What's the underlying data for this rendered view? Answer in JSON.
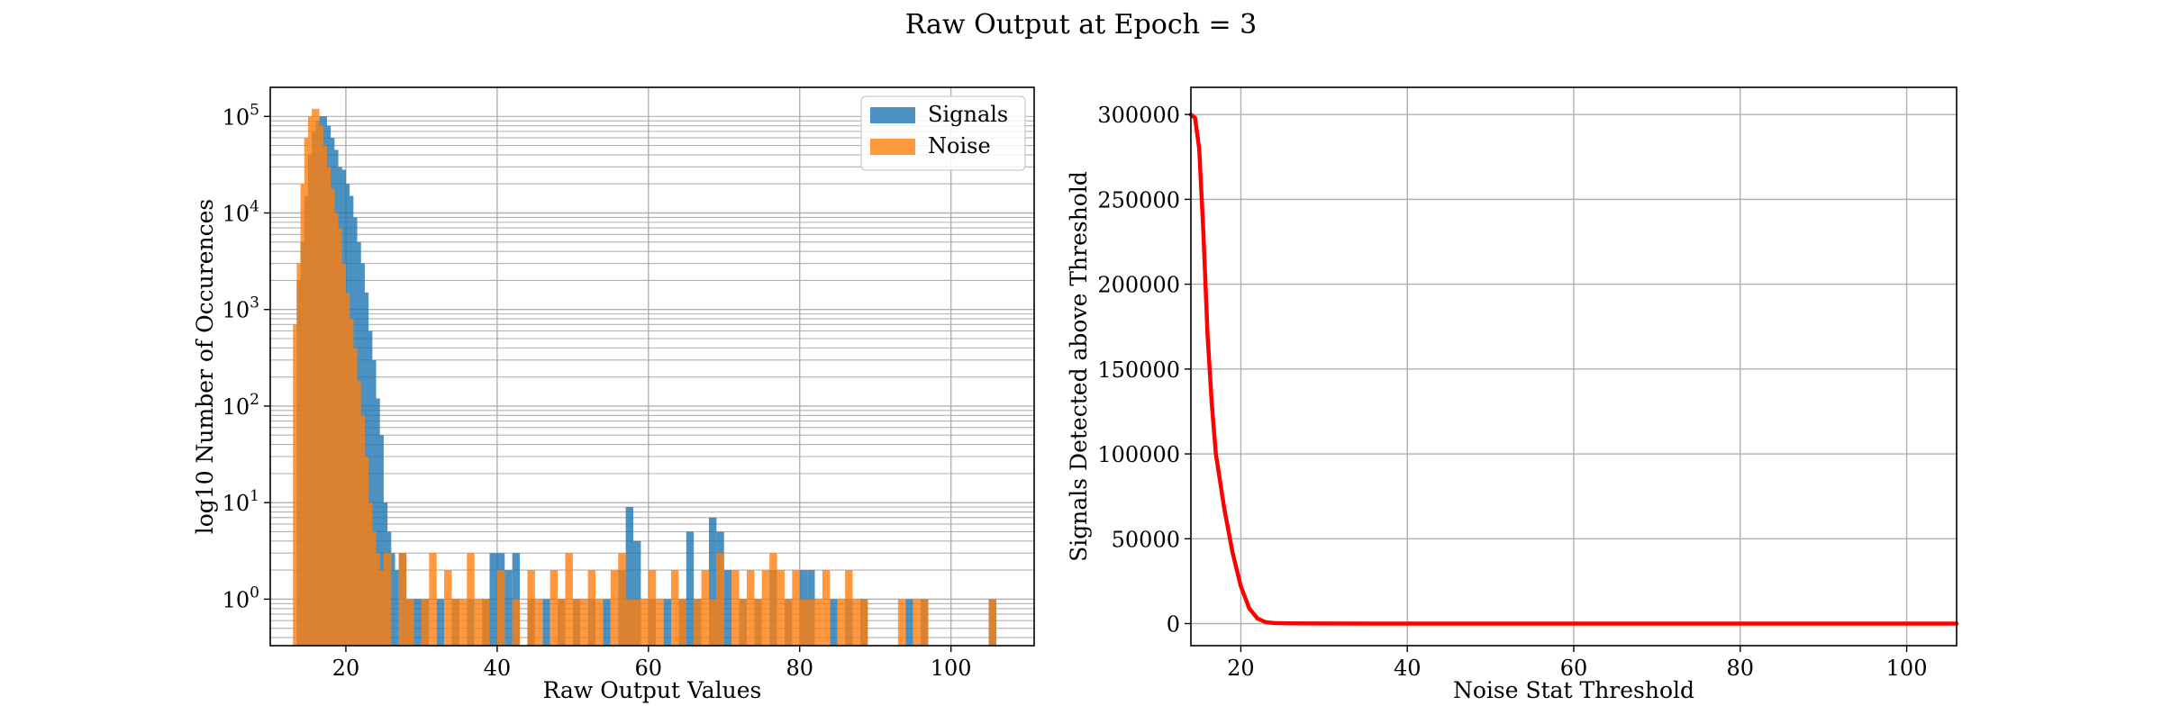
{
  "suptitle": "Raw Output at Epoch = 3",
  "chart_data": [
    {
      "type": "bar",
      "subtype": "histogram",
      "xlabel": "Raw Output Values",
      "ylabel": "log10 Number of Occurences",
      "yscale": "log",
      "xlim": [
        10,
        111
      ],
      "ylim": [
        0.33,
        200000
      ],
      "xticks": [
        20,
        40,
        60,
        80,
        100
      ],
      "yticks": [
        {
          "value": 1,
          "label": "10",
          "exp": "0"
        },
        {
          "value": 10,
          "label": "10",
          "exp": "1"
        },
        {
          "value": 100,
          "label": "10",
          "exp": "2"
        },
        {
          "value": 1000,
          "label": "10",
          "exp": "3"
        },
        {
          "value": 10000,
          "label": "10",
          "exp": "4"
        },
        {
          "value": 100000,
          "label": "10",
          "exp": "5"
        }
      ],
      "grid": true,
      "legend_position": "upper right",
      "bin_width": 1,
      "series": [
        {
          "name": "Signals",
          "color": "#1f77b4",
          "alpha": 0.8,
          "bins": [
            [
              13.5,
              2000
            ],
            [
              14,
              5000
            ],
            [
              14.5,
              15000
            ],
            [
              15,
              40000
            ],
            [
              15.5,
              70000
            ],
            [
              16,
              90000
            ],
            [
              16.5,
              100000
            ],
            [
              17,
              80000
            ],
            [
              17.5,
              60000
            ],
            [
              18,
              45000
            ],
            [
              18.5,
              30000
            ],
            [
              19,
              28000
            ],
            [
              19.5,
              20000
            ],
            [
              20,
              15000
            ],
            [
              20.5,
              9000
            ],
            [
              21,
              5000
            ],
            [
              21.5,
              3000
            ],
            [
              22,
              1500
            ],
            [
              22.5,
              600
            ],
            [
              23,
              300
            ],
            [
              23.5,
              120
            ],
            [
              24,
              50
            ],
            [
              24.5,
              10
            ],
            [
              25,
              5
            ],
            [
              25.5,
              3
            ],
            [
              26,
              2
            ],
            [
              27,
              3
            ],
            [
              28,
              1
            ],
            [
              29,
              1
            ],
            [
              30,
              1
            ],
            [
              32,
              1
            ],
            [
              34,
              1
            ],
            [
              36,
              1
            ],
            [
              38,
              1
            ],
            [
              39,
              3
            ],
            [
              40,
              3
            ],
            [
              41,
              2
            ],
            [
              42,
              3
            ],
            [
              44,
              1
            ],
            [
              46,
              1
            ],
            [
              48,
              1
            ],
            [
              50,
              1
            ],
            [
              52,
              1
            ],
            [
              54,
              1
            ],
            [
              56,
              2
            ],
            [
              57,
              9
            ],
            [
              58,
              4
            ],
            [
              60,
              1
            ],
            [
              62,
              1
            ],
            [
              64,
              1
            ],
            [
              65,
              5
            ],
            [
              66,
              1
            ],
            [
              68,
              7
            ],
            [
              69,
              5
            ],
            [
              70,
              2
            ],
            [
              72,
              1
            ],
            [
              74,
              1
            ],
            [
              76,
              2
            ],
            [
              78,
              1
            ],
            [
              80,
              2
            ],
            [
              81,
              2
            ],
            [
              84,
              1
            ],
            [
              86,
              1
            ],
            [
              88,
              1
            ],
            [
              94,
              1
            ],
            [
              96,
              1
            ],
            [
              105,
              1
            ]
          ]
        },
        {
          "name": "Noise",
          "color": "#ff7f0e",
          "alpha": 0.8,
          "bins": [
            [
              13,
              700
            ],
            [
              13.5,
              3000
            ],
            [
              14,
              20000
            ],
            [
              14.5,
              60000
            ],
            [
              15,
              100000
            ],
            [
              15.5,
              120000
            ],
            [
              16,
              80000
            ],
            [
              16.5,
              50000
            ],
            [
              17,
              30000
            ],
            [
              17.5,
              18000
            ],
            [
              18,
              10000
            ],
            [
              18.5,
              7000
            ],
            [
              19,
              3000
            ],
            [
              19.5,
              1500
            ],
            [
              20,
              800
            ],
            [
              20.5,
              400
            ],
            [
              21,
              180
            ],
            [
              21.5,
              80
            ],
            [
              22,
              30
            ],
            [
              22.5,
              10
            ],
            [
              23,
              5
            ],
            [
              23.5,
              3
            ],
            [
              24,
              2
            ],
            [
              25,
              3
            ],
            [
              27,
              3
            ],
            [
              28,
              1
            ],
            [
              30,
              1
            ],
            [
              31,
              3
            ],
            [
              33,
              2
            ],
            [
              34,
              1
            ],
            [
              35,
              1
            ],
            [
              36,
              3
            ],
            [
              37,
              1
            ],
            [
              38,
              1
            ],
            [
              40,
              2
            ],
            [
              42,
              1
            ],
            [
              44,
              2
            ],
            [
              45,
              1
            ],
            [
              47,
              2
            ],
            [
              48,
              1
            ],
            [
              49,
              3
            ],
            [
              50,
              1
            ],
            [
              51,
              1
            ],
            [
              52,
              2
            ],
            [
              53,
              1
            ],
            [
              55,
              2
            ],
            [
              56,
              3
            ],
            [
              57,
              1
            ],
            [
              58,
              1
            ],
            [
              59,
              1
            ],
            [
              60,
              2
            ],
            [
              61,
              1
            ],
            [
              63,
              2
            ],
            [
              64,
              1
            ],
            [
              66,
              1
            ],
            [
              67,
              2
            ],
            [
              68,
              1
            ],
            [
              69,
              3
            ],
            [
              71,
              2
            ],
            [
              72,
              1
            ],
            [
              73,
              2
            ],
            [
              74,
              1
            ],
            [
              75,
              2
            ],
            [
              76,
              3
            ],
            [
              77,
              2
            ],
            [
              78,
              1
            ],
            [
              79,
              2
            ],
            [
              80,
              1
            ],
            [
              81,
              1
            ],
            [
              82,
              1
            ],
            [
              83,
              2
            ],
            [
              85,
              1
            ],
            [
              86,
              2
            ],
            [
              87,
              1
            ],
            [
              88,
              1
            ],
            [
              93,
              1
            ],
            [
              95,
              1
            ],
            [
              96,
              1
            ],
            [
              105,
              1
            ]
          ]
        }
      ]
    },
    {
      "type": "line",
      "xlabel": "Noise Stat Threshold",
      "ylabel": "Signals Detected above Threshold",
      "xlim": [
        14,
        106
      ],
      "ylim": [
        -13000,
        316000
      ],
      "xticks": [
        20,
        40,
        60,
        80,
        100
      ],
      "yticks": [
        0,
        50000,
        100000,
        150000,
        200000,
        250000,
        300000
      ],
      "grid": true,
      "series": [
        {
          "name": "",
          "color": "#ff0000",
          "x": [
            14,
            14.5,
            15,
            15.5,
            16,
            16.5,
            17,
            18,
            19,
            20,
            21,
            22,
            23,
            24,
            26,
            30,
            40,
            60,
            80,
            106
          ],
          "y": [
            300000,
            298000,
            280000,
            230000,
            170000,
            130000,
            100000,
            68000,
            42000,
            22000,
            9000,
            3000,
            800,
            300,
            100,
            40,
            10,
            3,
            1,
            0
          ]
        }
      ]
    }
  ]
}
